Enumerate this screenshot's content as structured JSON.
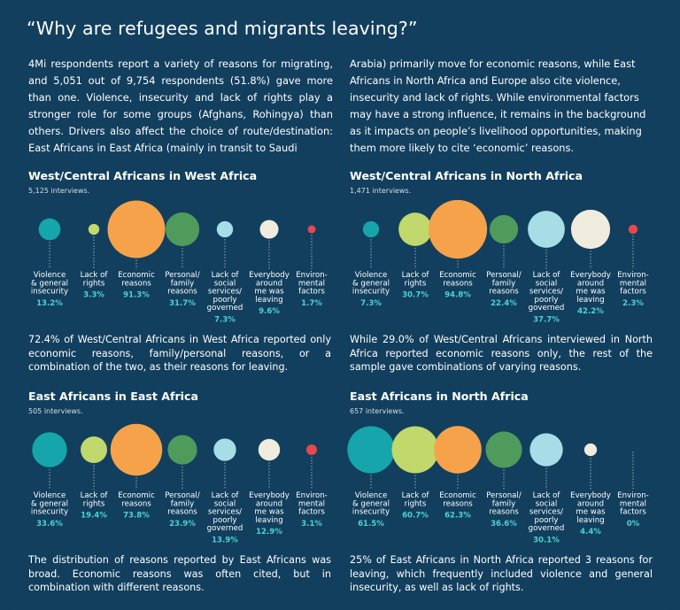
{
  "heading": "“Why are refugees and migrants leaving?”",
  "intro": {
    "left": "4Mi respondents report a variety of reasons for migrating, and 5,051 out of 9,754 respondents (51.8%) gave more than one. Violence, insecurity and lack of rights play a stronger role for some groups (Afghans, Rohingya) than others. Drivers also affect the choice of route/destination: East Africans in East Africa (mainly in transit to Saudi",
    "right": "Arabia) primarily move for economic reasons, while East Africans in North Africa and Europe also cite violence, insecurity and lack of rights. While environmental factors may have a strong influence, it remains in the background as it impacts on people’s livelihood opportunities, making them more likely to cite ‘economic’ reasons."
  },
  "colors": {
    "background": "#123f5e",
    "violence": "#16a5aa",
    "rights": "#c0d86c",
    "economic": "#f6a24b",
    "personal": "#4e9b5c",
    "social": "#a7dde6",
    "everybody": "#f0ecdd",
    "environmental": "#e6484c",
    "percent_text": "#4fd0d4"
  },
  "chart_data": [
    {
      "type": "bubble",
      "title": "West/Central Africans in West Africa",
      "subtitle": "5,125 interviews.",
      "categories": [
        "Violence\n& general\ninsecurity",
        "Lack of\nrights",
        "Economic\nreasons",
        "Personal/\nfamily\nreasons",
        "Lack of\nsocial\nservices/\npoorly\ngoverned",
        "Everybody\naround\nme was\nleaving",
        "Environ-\nmental\nfactors"
      ],
      "values": [
        13.2,
        3.3,
        91.3,
        31.7,
        7.3,
        9.6,
        1.7
      ],
      "labels": [
        "13.2%",
        "3.3%",
        "91.3%",
        "31.7%",
        "7.3%",
        "9.6%",
        "1.7%"
      ],
      "summary": "72.4% of West/Central Africans in West Africa reported only economic reasons, family/personal reasons, or a combination of the two, as their reasons for leaving."
    },
    {
      "type": "bubble",
      "title": "West/Central Africans in North Africa",
      "subtitle": "1,471 interviews.",
      "categories": [
        "Violence\n& general\ninsecurity",
        "Lack of\nrights",
        "Economic\nreasons",
        "Personal/\nfamily\nreasons",
        "Lack of\nsocial\nservices/\npoorly\ngoverned",
        "Everybody\naround\nme was\nleaving",
        "Environ-\nmental\nfactors"
      ],
      "values": [
        7.3,
        30.7,
        94.8,
        22.4,
        37.7,
        42.2,
        2.3
      ],
      "labels": [
        "7.3%",
        "30.7%",
        "94.8%",
        "22.4%",
        "37.7%",
        "42.2%",
        "2.3%"
      ],
      "summary": "While 29.0% of West/Central Africans interviewed in North Africa reported economic reasons only, the rest of the sample gave combinations of varying reasons."
    },
    {
      "type": "bubble",
      "title": "East Africans in East Africa",
      "subtitle": "505 interviews.",
      "categories": [
        "Violence\n& general\ninsecurity",
        "Lack of\nrights",
        "Economic\nreasons",
        "Personal/\nfamily\nreasons",
        "Lack of\nsocial\nservices/\npoorly\ngoverned",
        "Everybody\naround\nme was\nleaving",
        "Environ-\nmental\nfactors"
      ],
      "values": [
        33.6,
        19.4,
        73.8,
        23.9,
        13.9,
        12.9,
        3.1
      ],
      "labels": [
        "33.6%",
        "19.4%",
        "73.8%",
        "23.9%",
        "13.9%",
        "12.9%",
        "3.1%"
      ],
      "summary": "The distribution of reasons reported by East Africans was broad. Economic reasons was often cited, but in combination with different reasons."
    },
    {
      "type": "bubble",
      "title": "East Africans in North Africa",
      "subtitle": "657 interviews.",
      "categories": [
        "Violence\n& general\ninsecurity",
        "Lack of\nrights",
        "Economic\nreasons",
        "Personal/\nfamily\nreasons",
        "Lack of\nsocial\nservices/\npoorly\ngoverned",
        "Everybody\naround\nme was\nleaving",
        "Environ-\nmental\nfactors"
      ],
      "values": [
        61.5,
        60.7,
        62.3,
        36.6,
        30.1,
        4.4,
        0
      ],
      "labels": [
        "61.5%",
        "60.7%",
        "62.3%",
        "36.6%",
        "30.1%",
        "4.4%",
        "0%"
      ],
      "summary": "25% of East Africans in North Africa reported 3 reasons for leaving, which frequently included violence and general insecurity, as well as lack of rights."
    }
  ]
}
